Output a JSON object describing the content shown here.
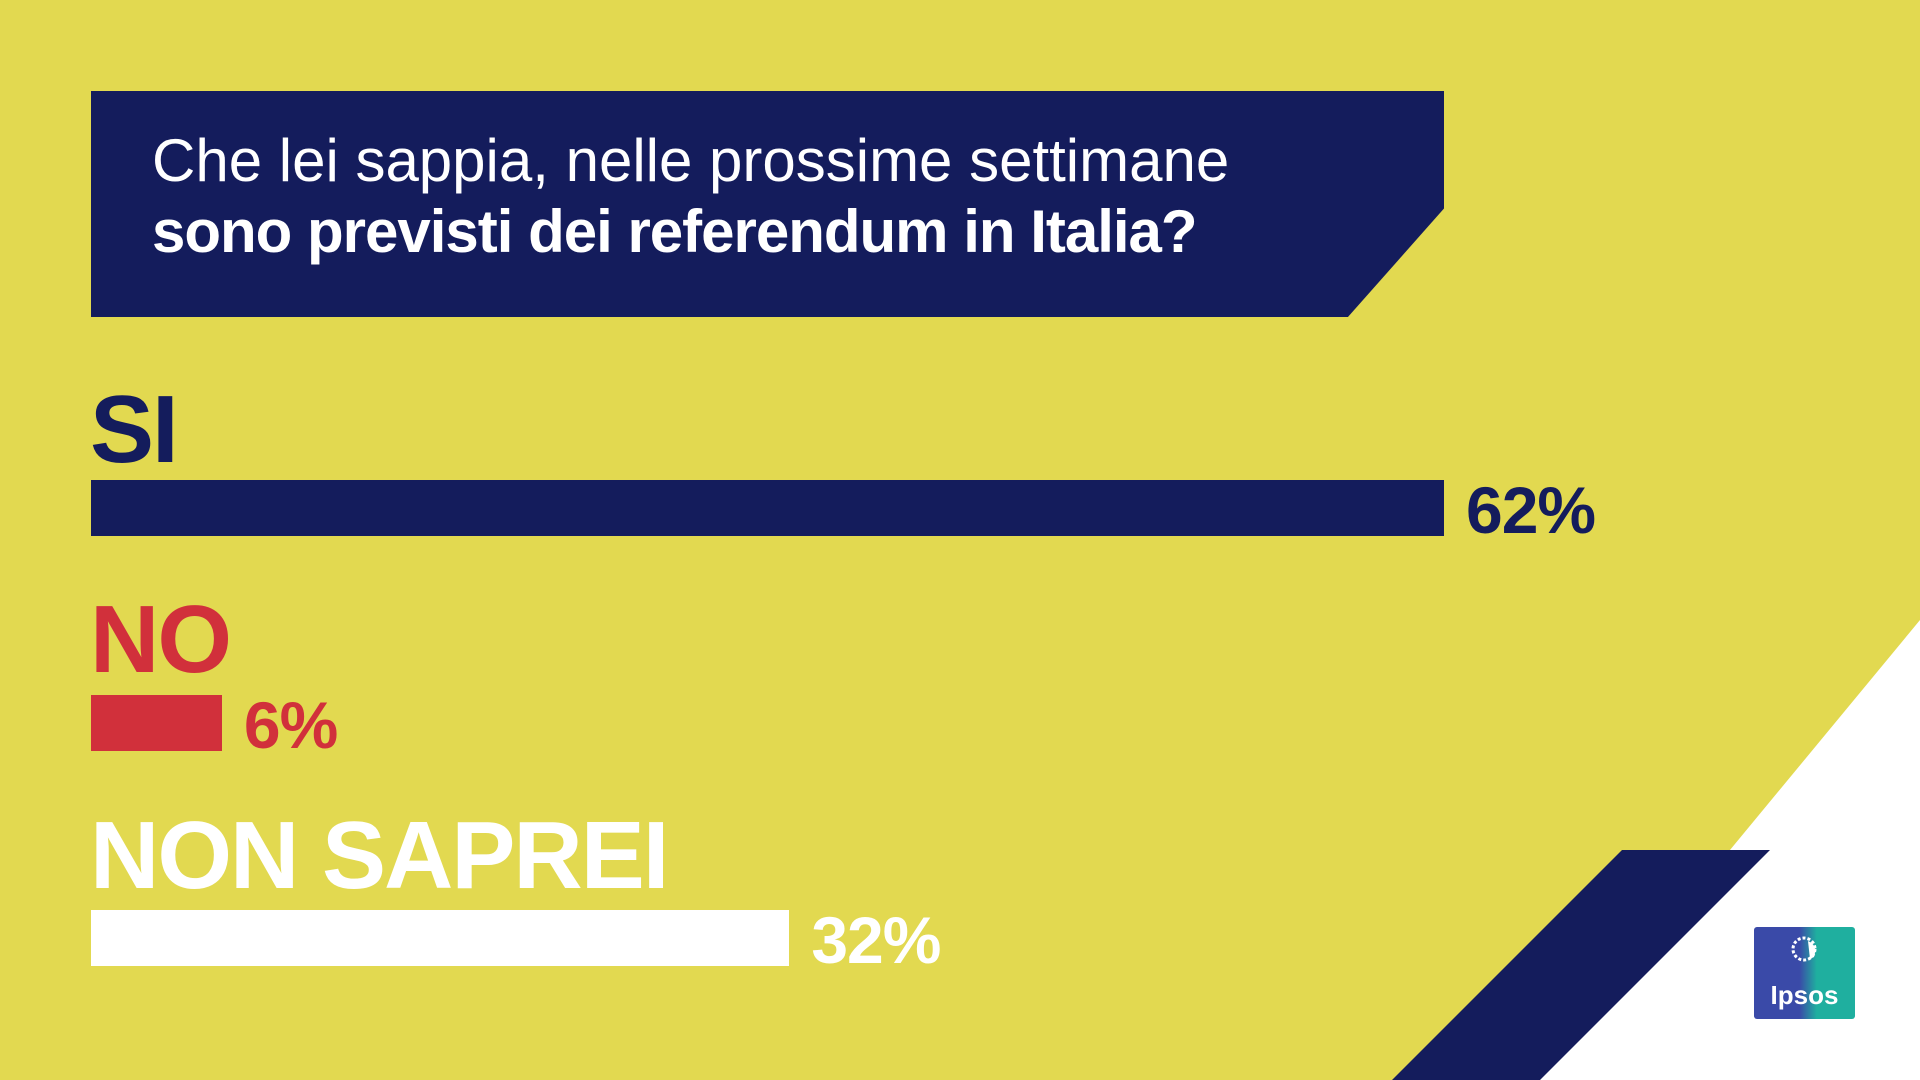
{
  "question": {
    "line1": "Che lei sappia, nelle prossime settimane",
    "line2": "sono previsti dei referendum in Italia?"
  },
  "chart_data": {
    "type": "bar",
    "orientation": "horizontal",
    "categories": [
      "SI",
      "NO",
      "NON SAPREI"
    ],
    "values": [
      62,
      6,
      32
    ],
    "value_labels": [
      "62%",
      "6%",
      "32%"
    ],
    "colors": [
      "#141c5c",
      "#d1303b",
      "#ffffff"
    ],
    "title": "Che lei sappia, nelle prossime settimane sono previsti dei referendum in Italia?"
  },
  "logo": {
    "text": "Ipsos",
    "icon": "ipsos-logo-icon"
  },
  "colors": {
    "background": "#e2d950",
    "navy": "#141c5c",
    "red": "#d1303b",
    "white": "#ffffff"
  }
}
